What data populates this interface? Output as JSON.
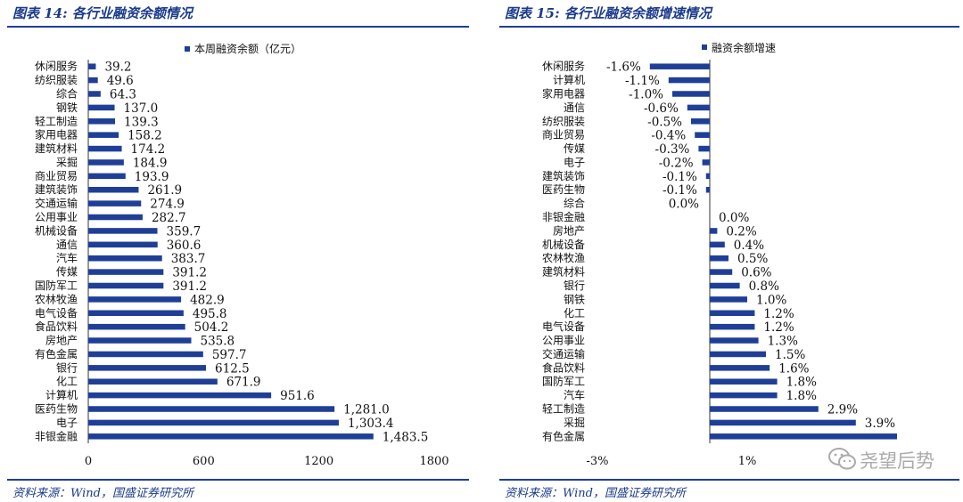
{
  "left": {
    "title": "图表 14:  各行业融资余额情况",
    "source": "资料来源：Wind，国盛证券研究所",
    "chart_data": {
      "type": "bar",
      "orientation": "horizontal",
      "title": "",
      "categories": [
        "休闲服务",
        "纺织服装",
        "综合",
        "钢铁",
        "轻工制造",
        "家用电器",
        "建筑材料",
        "采掘",
        "商业贸易",
        "建筑装饰",
        "交通运输",
        "公用事业",
        "机械设备",
        "通信",
        "汽车",
        "传媒",
        "国防军工",
        "农林牧渔",
        "电气设备",
        "食品饮料",
        "房地产",
        "有色金属",
        "银行",
        "化工",
        "计算机",
        "医药生物",
        "电子",
        "非银金融"
      ],
      "series": [
        {
          "name": "本周融资余额（亿元）",
          "values": [
            39.2,
            49.6,
            64.3,
            137.0,
            139.3,
            158.2,
            174.2,
            184.9,
            193.9,
            261.9,
            274.9,
            282.7,
            359.7,
            360.6,
            383.7,
            391.2,
            391.2,
            482.9,
            495.8,
            504.2,
            535.8,
            597.7,
            612.5,
            671.9,
            951.6,
            1281.0,
            1303.4,
            1483.5
          ]
        }
      ],
      "value_labels": [
        "39.2",
        "49.6",
        "64.3",
        "137.0",
        "139.3",
        "158.2",
        "174.2",
        "184.9",
        "193.9",
        "261.9",
        "274.9",
        "282.7",
        "359.7",
        "360.6",
        "383.7",
        "391.2",
        "391.2",
        "482.9",
        "495.8",
        "504.2",
        "535.8",
        "597.7",
        "612.5",
        "671.9",
        "951.6",
        "1,281.0",
        "1,303.4",
        "1,483.5"
      ],
      "xlim": [
        0,
        1800
      ],
      "xticks": [
        "0",
        "600",
        "1200",
        "1800"
      ],
      "legend_position": "top",
      "grid": false,
      "color": "#1f3f97"
    }
  },
  "right": {
    "title": "图表 15:  各行业融资余额增速情况",
    "source": "资料来源：Wind，国盛证券研究所",
    "chart_data": {
      "type": "bar",
      "orientation": "horizontal",
      "title": "",
      "categories": [
        "休闲服务",
        "计算机",
        "家用电器",
        "通信",
        "纺织服装",
        "商业贸易",
        "传媒",
        "电子",
        "建筑装饰",
        "医药生物",
        "综合",
        "非银金融",
        "房地产",
        "机械设备",
        "农林牧渔",
        "建筑材料",
        "银行",
        "钢铁",
        "化工",
        "电气设备",
        "公用事业",
        "交通运输",
        "食品饮料",
        "国防军工",
        "汽车",
        "轻工制造",
        "采掘",
        "有色金属"
      ],
      "series": [
        {
          "name": "融资余额增速",
          "values": [
            -1.6,
            -1.1,
            -1.0,
            -0.6,
            -0.5,
            -0.4,
            -0.3,
            -0.2,
            -0.1,
            -0.1,
            0.0,
            0.0,
            0.2,
            0.4,
            0.5,
            0.6,
            0.8,
            1.0,
            1.2,
            1.2,
            1.3,
            1.5,
            1.6,
            1.8,
            1.8,
            2.9,
            3.9,
            5.0
          ]
        }
      ],
      "value_labels": [
        "-1.6%",
        "-1.1%",
        "-1.0%",
        "-0.6%",
        "-0.5%",
        "-0.4%",
        "-0.3%",
        "-0.2%",
        "-0.1%",
        "-0.1%",
        "0.0%",
        "0.0%",
        "0.2%",
        "0.4%",
        "0.5%",
        "0.6%",
        "0.8%",
        "1.0%",
        "1.2%",
        "1.2%",
        "1.3%",
        "1.5%",
        "1.6%",
        "1.8%",
        "1.8%",
        "2.9%",
        "3.9%",
        ""
      ],
      "unit": "%",
      "xlim": [
        -3,
        5
      ],
      "xticks": [
        "-3%",
        "1%"
      ],
      "legend_position": "top",
      "grid": false,
      "color": "#1f3f97"
    }
  },
  "watermark": {
    "text": "尧望后势"
  }
}
